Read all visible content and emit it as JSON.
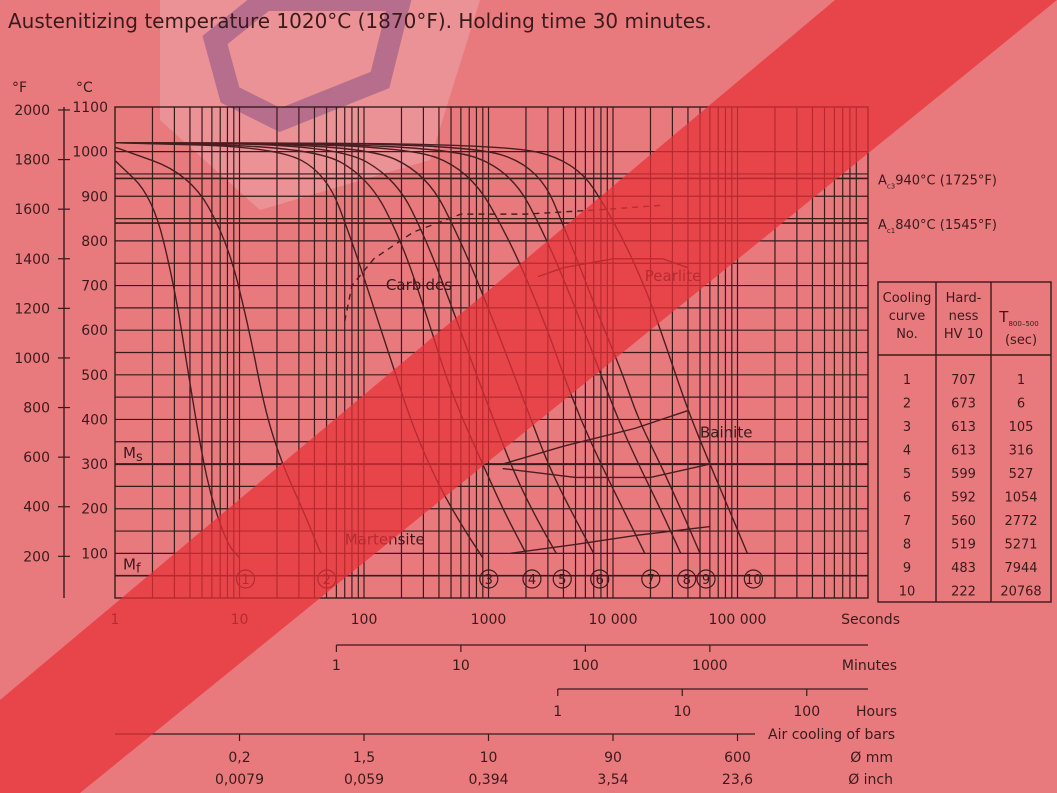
{
  "chart_data": {
    "type": "line",
    "title": "Austenitizing temperature 1020°C (1870°F). Holding time 30 minutes.",
    "y_axis": {
      "unit_f": "°F",
      "unit_c": "°C",
      "celsius_ticks": [
        100,
        200,
        300,
        400,
        500,
        600,
        700,
        800,
        900,
        1000,
        1100
      ],
      "fahrenheit_ticks": [
        200,
        400,
        600,
        800,
        1000,
        1200,
        1400,
        1600,
        1800,
        2000
      ],
      "ylim_c": [
        0,
        1100
      ]
    },
    "x_axes": {
      "seconds": {
        "label": "Seconds",
        "ticks": [
          "1",
          "10",
          "100",
          "1000",
          "10 000",
          "100 000"
        ],
        "values": [
          1,
          10,
          100,
          1000,
          10000,
          100000
        ]
      },
      "minutes": {
        "label": "Minutes",
        "ticks": [
          "1",
          "10",
          "100",
          "1000"
        ],
        "values": [
          1,
          10,
          100,
          1000
        ]
      },
      "hours": {
        "label": "Hours",
        "ticks": [
          "1",
          "10",
          "100"
        ],
        "values": [
          1,
          10,
          100
        ]
      },
      "air_cooling": {
        "label": "Air cooling of bars",
        "mm_label": "Ø mm",
        "inch_label": "Ø inch",
        "mm": [
          "0,2",
          "1,5",
          "10",
          "90",
          "600"
        ],
        "inch": [
          "0,0079",
          "0,059",
          "0,394",
          "3,54",
          "23,6"
        ],
        "seconds": [
          10,
          100,
          1000,
          10000,
          100000
        ]
      },
      "xlim_seconds": [
        1,
        600000
      ],
      "log": true
    },
    "reference_lines": [
      {
        "label_main": "A",
        "label_sub": "c3",
        "label_rest": "940°C (1725°F)",
        "temp_c": 940
      },
      {
        "label_main": "A",
        "label_sub": "c1",
        "label_rest": "840°C (1545°F)",
        "temp_c": 840
      },
      {
        "label_main": "M",
        "label_sub": "s",
        "temp_c": 300
      },
      {
        "label_main": "M",
        "label_sub": "f",
        "temp_c": 50
      }
    ],
    "phase_labels": [
      "Carbides",
      "Pearlite",
      "Bainite",
      "Martensite"
    ],
    "cooling_curves": [
      {
        "no": "1",
        "hv10": "707",
        "t800_500": "1",
        "points": [
          [
            1,
            980
          ],
          [
            2,
            900
          ],
          [
            3,
            700
          ],
          [
            4,
            480
          ],
          [
            5,
            320
          ],
          [
            6,
            220
          ],
          [
            8,
            120
          ],
          [
            10,
            90
          ]
        ]
      },
      {
        "no": "2",
        "hv10": "673",
        "t800_500": "6",
        "points": [
          [
            1,
            1010
          ],
          [
            4,
            950
          ],
          [
            8,
            800
          ],
          [
            12,
            600
          ],
          [
            16,
            420
          ],
          [
            22,
            300
          ],
          [
            32,
            200
          ],
          [
            45,
            100
          ]
        ]
      },
      {
        "no": "3",
        "hv10": "613",
        "t800_500": "105",
        "points": [
          [
            1,
            1020
          ],
          [
            20,
            1010
          ],
          [
            50,
            950
          ],
          [
            80,
            800
          ],
          [
            130,
            620
          ],
          [
            180,
            500
          ],
          [
            250,
            380
          ],
          [
            400,
            250
          ],
          [
            650,
            150
          ],
          [
            900,
            90
          ]
        ]
      },
      {
        "no": "4",
        "hv10": "613",
        "t800_500": "316",
        "points": [
          [
            1,
            1020
          ],
          [
            40,
            1010
          ],
          [
            110,
            940
          ],
          [
            200,
            800
          ],
          [
            330,
            620
          ],
          [
            450,
            500
          ],
          [
            620,
            400
          ],
          [
            900,
            300
          ],
          [
            1300,
            200
          ],
          [
            2000,
            100
          ]
        ]
      },
      {
        "no": "5",
        "hv10": "599",
        "t800_500": "527",
        "points": [
          [
            1,
            1020
          ],
          [
            60,
            1015
          ],
          [
            180,
            940
          ],
          [
            320,
            800
          ],
          [
            560,
            620
          ],
          [
            800,
            500
          ],
          [
            1100,
            400
          ],
          [
            1500,
            300
          ],
          [
            2200,
            200
          ],
          [
            3500,
            100
          ]
        ]
      },
      {
        "no": "6",
        "hv10": "592",
        "t800_500": "1054",
        "points": [
          [
            1,
            1020
          ],
          [
            100,
            1015
          ],
          [
            320,
            950
          ],
          [
            600,
            800
          ],
          [
            1100,
            620
          ],
          [
            1600,
            500
          ],
          [
            2200,
            400
          ],
          [
            3000,
            300
          ],
          [
            4500,
            200
          ],
          [
            7000,
            100
          ]
        ]
      },
      {
        "no": "7",
        "hv10": "560",
        "t800_500": "2772",
        "points": [
          [
            1,
            1020
          ],
          [
            200,
            1015
          ],
          [
            700,
            960
          ],
          [
            1500,
            800
          ],
          [
            2800,
            620
          ],
          [
            4000,
            500
          ],
          [
            5500,
            400
          ],
          [
            8000,
            300
          ],
          [
            12000,
            200
          ],
          [
            18000,
            100
          ]
        ]
      },
      {
        "no": "8",
        "hv10": "519",
        "t800_500": "5271",
        "points": [
          [
            1,
            1020
          ],
          [
            400,
            1015
          ],
          [
            1500,
            960
          ],
          [
            3000,
            800
          ],
          [
            5500,
            620
          ],
          [
            8000,
            500
          ],
          [
            11000,
            400
          ],
          [
            16000,
            300
          ],
          [
            24000,
            200
          ],
          [
            35000,
            100
          ]
        ]
      },
      {
        "no": "9",
        "hv10": "483",
        "t800_500": "7944",
        "points": [
          [
            1,
            1020
          ],
          [
            600,
            1018
          ],
          [
            2500,
            970
          ],
          [
            4500,
            800
          ],
          [
            8000,
            620
          ],
          [
            12000,
            500
          ],
          [
            16000,
            400
          ],
          [
            24000,
            300
          ],
          [
            35000,
            200
          ],
          [
            50000,
            100
          ]
        ]
      },
      {
        "no": "10",
        "hv10": "222",
        "t800_500": "20768",
        "points": [
          [
            1,
            1020
          ],
          [
            1200,
            1018
          ],
          [
            5000,
            980
          ],
          [
            10000,
            850
          ],
          [
            18000,
            700
          ],
          [
            27000,
            560
          ],
          [
            40000,
            420
          ],
          [
            60000,
            300
          ],
          [
            85000,
            200
          ],
          [
            120000,
            100
          ]
        ]
      }
    ]
  },
  "table": {
    "headers": [
      {
        "lines": [
          "Cooling",
          "curve",
          "No."
        ]
      },
      {
        "lines": [
          "Hard-",
          "ness",
          "HV 10"
        ]
      },
      {
        "lines": [
          "T"
        ],
        "sub": "800–500",
        "after": "(sec)"
      }
    ]
  }
}
